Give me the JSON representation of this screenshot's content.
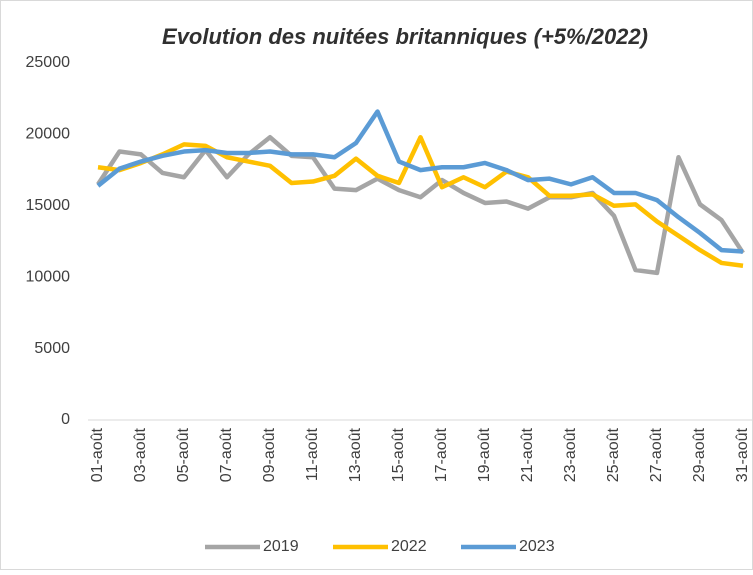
{
  "chart_data": {
    "type": "line",
    "title": "Evolution des nuitées britanniques (+5%/2022)",
    "categories": [
      "01-août",
      null,
      "03-août",
      null,
      "05-août",
      null,
      "07-août",
      null,
      "09-août",
      null,
      "11-août",
      null,
      "13-août",
      null,
      "15-août",
      null,
      "17-août",
      null,
      "19-août",
      null,
      "21-août",
      null,
      "23-août",
      null,
      "25-août",
      null,
      "27-août",
      null,
      "29-août",
      null,
      "31-août"
    ],
    "series": [
      {
        "name": "2019",
        "color": "#a5a5a5",
        "values": [
          16500,
          18800,
          18600,
          17300,
          17000,
          18900,
          17000,
          18600,
          19800,
          18500,
          18400,
          16200,
          16100,
          16900,
          16100,
          15600,
          16800,
          15900,
          15200,
          15300,
          14800,
          15600,
          15600,
          15900,
          14300,
          10500,
          10300,
          18400,
          15100,
          14000,
          11700
        ]
      },
      {
        "name": "2022",
        "color": "#ffc000",
        "values": [
          17700,
          17500,
          18000,
          18600,
          19300,
          19200,
          18400,
          18100,
          17800,
          16600,
          16700,
          17100,
          18300,
          17100,
          16600,
          19800,
          16300,
          17000,
          16300,
          17400,
          17000,
          15700,
          15700,
          15800,
          15000,
          15100,
          13900,
          12900,
          11900,
          11000,
          10800
        ]
      },
      {
        "name": "2023",
        "color": "#5b9bd5",
        "values": [
          16400,
          17600,
          18100,
          18500,
          18800,
          18900,
          18700,
          18700,
          18800,
          18600,
          18600,
          18400,
          19400,
          21600,
          18100,
          17500,
          17700,
          17700,
          18000,
          17500,
          16800,
          16900,
          16500,
          17000,
          15900,
          15900,
          15400,
          14200,
          13100,
          11900,
          11800
        ]
      }
    ],
    "ylim": [
      0,
      25000
    ],
    "yticks": [
      0,
      5000,
      10000,
      15000,
      20000,
      25000
    ],
    "grid": false,
    "legend": "bottom"
  }
}
